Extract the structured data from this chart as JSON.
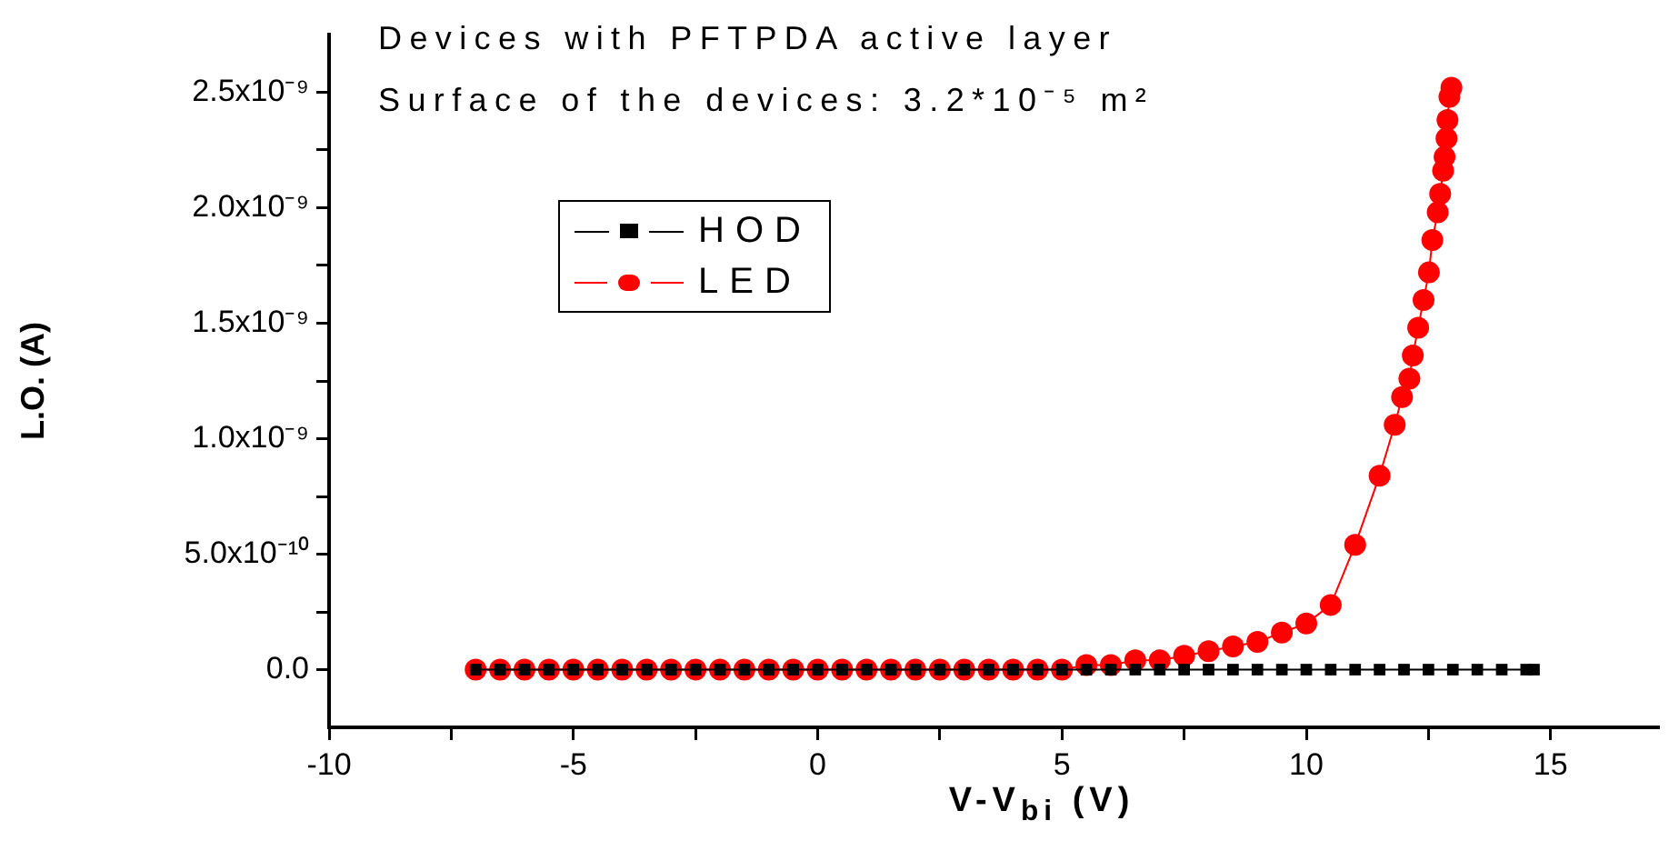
{
  "chart_data": {
    "type": "line",
    "title": "Devices with PFTPDA active layer",
    "subtitle": "Surface of the devices: 3.2*10⁻⁵ m²",
    "xlabel": "V-V$_{bi}$ (V)",
    "ylabel": "L.O. (A)",
    "xlim": [
      -10,
      17.2
    ],
    "xticks": [
      -10,
      {
        "value": -7.5,
        "label": null
      },
      -5,
      {
        "value": -2.5,
        "label": null
      },
      0,
      {
        "value": 2.5,
        "label": null
      },
      5,
      {
        "value": 7.5,
        "label": null
      },
      10,
      {
        "value": 12.5,
        "label": null
      },
      15
    ],
    "ylim": [
      -2.5e-10,
      2.75e-09
    ],
    "yticks": [
      {
        "value": 0,
        "label": "0.0"
      },
      {
        "value": 2.5e-10,
        "label": null
      },
      {
        "value": 5e-10,
        "label": "5.0x10⁻¹⁰"
      },
      {
        "value": 7.5e-10,
        "label": null
      },
      {
        "value": 1e-09,
        "label": "1.0x10⁻⁹"
      },
      {
        "value": 1.25e-09,
        "label": null
      },
      {
        "value": 1.5e-09,
        "label": "1.5x10⁻⁹"
      },
      {
        "value": 1.75e-09,
        "label": null
      },
      {
        "value": 2e-09,
        "label": "2.0x10⁻⁹"
      },
      {
        "value": 2.25e-09,
        "label": null
      },
      {
        "value": 2.5e-09,
        "label": "2.5x10⁻⁹"
      }
    ],
    "grid": false,
    "legend": "top left",
    "series": [
      {
        "name": "HOD",
        "color": "#000000",
        "marker": "square",
        "x": [
          -7,
          -6.5,
          -6,
          -5.5,
          -5,
          -4.5,
          -4,
          -3.5,
          -3,
          -2.5,
          -2,
          -1.5,
          -1,
          -0.5,
          0,
          0.5,
          1,
          1.5,
          2,
          2.5,
          3,
          3.5,
          4,
          4.5,
          5,
          5.5,
          6,
          6.5,
          7,
          7.5,
          8,
          8.5,
          9,
          9.5,
          10,
          10.5,
          11,
          11.5,
          12,
          12.5,
          13,
          13.5,
          14,
          14.5,
          14.66
        ],
        "values": [
          0,
          0,
          0,
          0,
          0,
          0,
          0,
          0,
          0,
          0,
          0,
          0,
          0,
          0,
          0,
          0,
          0,
          0,
          0,
          0,
          0,
          0,
          0,
          0,
          0,
          0,
          0,
          0,
          0,
          0,
          0,
          0,
          0,
          0,
          0,
          0,
          0,
          0,
          0,
          0,
          0,
          0,
          0,
          0,
          0
        ]
      },
      {
        "name": "LED",
        "color": "#ff0000",
        "marker": "circle",
        "x": [
          -7,
          -6.5,
          -6,
          -5.5,
          -5,
          -4.5,
          -4,
          -3.5,
          -3,
          -2.5,
          -2,
          -1.5,
          -1,
          -0.5,
          0,
          0.5,
          1,
          1.5,
          2,
          2.5,
          3,
          3.5,
          4,
          4.5,
          5,
          5.5,
          6,
          6.5,
          7,
          7.5,
          8,
          8.5,
          9,
          9.5,
          10,
          10.5,
          11,
          11.5,
          11.81,
          11.96,
          12.11,
          12.18,
          12.29,
          12.4,
          12.51,
          12.58,
          12.69,
          12.74,
          12.8,
          12.83,
          12.87,
          12.89,
          12.93,
          12.97
        ],
        "values": [
          0,
          0,
          0,
          0,
          0,
          0,
          0,
          0,
          0,
          0,
          0,
          0,
          0,
          0,
          0,
          0,
          0,
          0,
          0,
          0,
          0,
          0,
          0,
          0,
          0,
          2e-11,
          2e-11,
          4e-11,
          4e-11,
          6e-11,
          8e-11,
          1e-10,
          1.2e-10,
          1.6e-10,
          2e-10,
          2.8e-10,
          5.4e-10,
          8.4e-10,
          1.06e-09,
          1.18e-09,
          1.26e-09,
          1.36e-09,
          1.48e-09,
          1.6e-09,
          1.72e-09,
          1.86e-09,
          1.98e-09,
          2.06e-09,
          2.16e-09,
          2.22e-09,
          2.3e-09,
          2.38e-09,
          2.48e-09,
          2.52e-09
        ]
      }
    ]
  }
}
